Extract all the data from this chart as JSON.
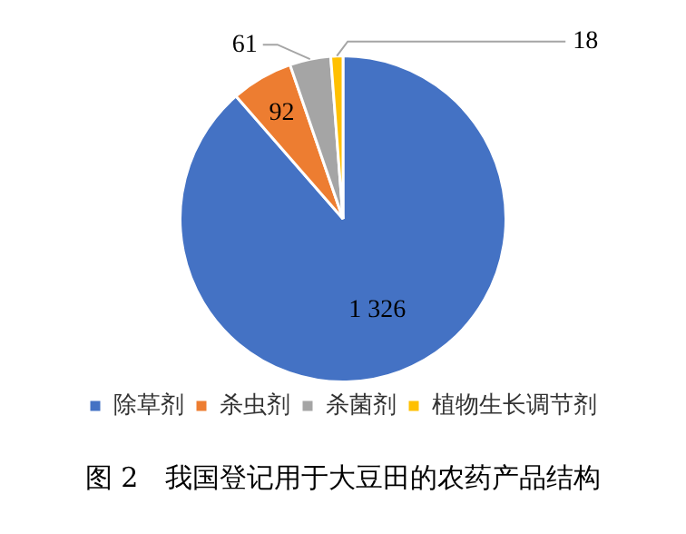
{
  "chart_data": {
    "type": "pie",
    "categories": [
      "除草剂",
      "杀虫剂",
      "杀菌剂",
      "植物生长调节剂"
    ],
    "values": [
      1326,
      92,
      61,
      18
    ],
    "value_labels": [
      "1 326",
      "92",
      "61",
      "18"
    ],
    "colors": [
      "#4472c4",
      "#ed7d31",
      "#a5a5a5",
      "#ffc000"
    ],
    "legend": "bottom",
    "annotations": [
      "图 2　我国登记用于大豆田的农药产品结构"
    ]
  }
}
